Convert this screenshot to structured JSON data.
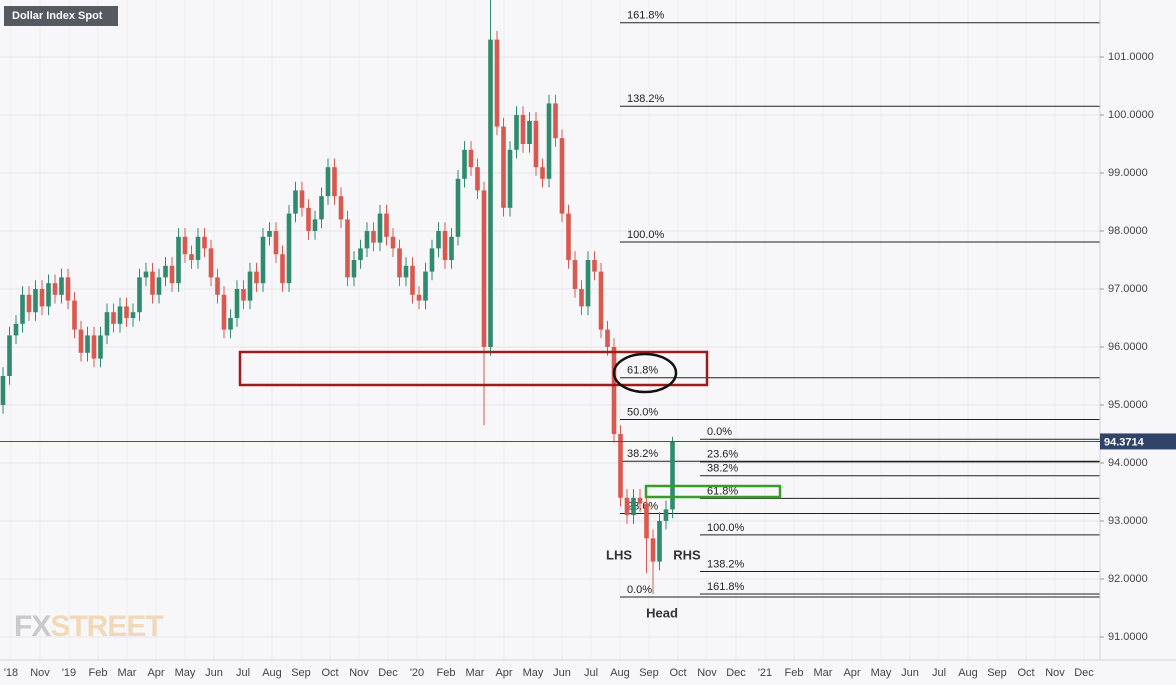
{
  "chart_data": {
    "type": "candlestick",
    "title": "Dollar Index Spot",
    "watermark": [
      "FX",
      "STREET"
    ],
    "x_labels": [
      "'18",
      "Nov",
      "'19",
      "Feb",
      "Mar",
      "Apr",
      "May",
      "Jun",
      "Jul",
      "Aug",
      "Sep",
      "Oct",
      "Nov",
      "Dec",
      "'20",
      "Feb",
      "Mar",
      "Apr",
      "May",
      "Jun",
      "Jul",
      "Aug",
      "Sep",
      "Oct",
      "Nov",
      "Dec",
      "'21",
      "Feb",
      "Mar",
      "Apr",
      "May",
      "Jun",
      "Jul",
      "Aug",
      "Sep",
      "Oct",
      "Nov",
      "Dec"
    ],
    "colors": {
      "up": "#2e8b6e",
      "down": "#d9584f"
    },
    "open": [
      95.0,
      95.5,
      96.2,
      96.4,
      96.9,
      96.6,
      97.0,
      96.7,
      97.1,
      96.9,
      97.2,
      96.8,
      96.3,
      95.9,
      96.2,
      95.8,
      96.2,
      96.6,
      96.4,
      96.7,
      96.5,
      96.6,
      97.2,
      97.3,
      96.9,
      97.2,
      97.4,
      97.1,
      97.9,
      97.6,
      97.5,
      97.9,
      97.7,
      97.2,
      96.9,
      96.3,
      96.5,
      97.0,
      96.8,
      97.3,
      97.1,
      97.9,
      98.0,
      97.6,
      97.1,
      98.3,
      98.7,
      98.4,
      98.0,
      98.2,
      98.6,
      99.1,
      98.6,
      98.2,
      97.2,
      97.5,
      97.7,
      98.0,
      97.8,
      98.3,
      97.9,
      97.7,
      97.2,
      97.4,
      96.9,
      96.8,
      97.3,
      97.7,
      98.0,
      97.5,
      97.9,
      98.9,
      99.4,
      99.1,
      98.7,
      96.0,
      101.3,
      99.8,
      98.4,
      99.4,
      100.0,
      99.5,
      99.9,
      99.1,
      98.9,
      100.2,
      99.6,
      98.3,
      97.5,
      97.0,
      96.7,
      97.5,
      97.3,
      96.3,
      96.0,
      94.5,
      93.4,
      93.1,
      93.4,
      93.3,
      92.7,
      92.3,
      93.0,
      93.2
    ],
    "high": [
      95.65,
      96.35,
      96.55,
      97.05,
      97.05,
      97.15,
      97.15,
      97.25,
      97.25,
      97.35,
      97.35,
      96.95,
      96.45,
      96.35,
      96.35,
      96.35,
      96.75,
      96.75,
      96.85,
      96.85,
      96.75,
      97.35,
      97.45,
      97.45,
      97.35,
      97.55,
      97.55,
      98.05,
      98.05,
      97.75,
      98.05,
      98.05,
      97.85,
      97.35,
      97.05,
      96.65,
      97.15,
      97.15,
      97.45,
      97.45,
      98.05,
      98.15,
      98.15,
      97.75,
      98.45,
      98.85,
      98.85,
      98.55,
      98.35,
      98.75,
      99.25,
      99.25,
      98.75,
      98.35,
      97.65,
      97.85,
      98.15,
      98.15,
      98.45,
      98.45,
      98.05,
      97.85,
      97.55,
      97.55,
      97.05,
      97.45,
      97.85,
      98.15,
      98.15,
      98.05,
      99.05,
      99.55,
      99.55,
      99.25,
      98.85,
      102.9,
      101.45,
      99.95,
      99.55,
      100.15,
      100.15,
      100.05,
      100.05,
      99.25,
      100.35,
      100.35,
      99.75,
      98.45,
      97.65,
      97.15,
      97.65,
      97.65,
      97.45,
      96.45,
      96.15,
      94.65,
      93.55,
      93.55,
      93.55,
      93.45,
      92.85,
      93.15,
      93.35,
      94.45
    ],
    "low": [
      94.85,
      95.35,
      96.05,
      96.25,
      96.45,
      96.45,
      96.55,
      96.55,
      96.75,
      96.75,
      96.65,
      96.15,
      95.75,
      95.75,
      95.65,
      95.65,
      96.05,
      96.25,
      96.25,
      96.35,
      96.35,
      96.45,
      97.05,
      96.75,
      96.75,
      97.05,
      96.95,
      96.95,
      97.45,
      97.35,
      97.35,
      97.55,
      97.05,
      96.75,
      96.15,
      96.15,
      96.35,
      96.65,
      96.65,
      96.95,
      96.95,
      97.75,
      97.45,
      96.95,
      96.95,
      98.15,
      98.25,
      97.85,
      97.85,
      98.05,
      98.45,
      98.45,
      98.05,
      97.05,
      97.05,
      97.35,
      97.55,
      97.65,
      97.65,
      97.75,
      97.55,
      97.05,
      97.05,
      96.75,
      96.65,
      96.65,
      97.15,
      97.55,
      97.35,
      97.35,
      97.75,
      98.75,
      98.95,
      98.55,
      94.65,
      95.85,
      99.65,
      98.25,
      98.25,
      99.25,
      99.35,
      99.35,
      98.95,
      98.75,
      98.75,
      99.45,
      98.15,
      97.35,
      96.85,
      96.55,
      96.55,
      97.15,
      96.15,
      95.85,
      94.35,
      93.25,
      92.95,
      92.95,
      93.15,
      92.1,
      91.74,
      92.15,
      92.85,
      93.05
    ],
    "close": [
      95.5,
      96.2,
      96.4,
      96.9,
      96.6,
      97.0,
      96.7,
      97.1,
      96.9,
      97.2,
      96.8,
      96.3,
      95.9,
      96.2,
      95.8,
      96.2,
      96.6,
      96.4,
      96.7,
      96.5,
      96.6,
      97.2,
      97.3,
      96.9,
      97.2,
      97.4,
      97.1,
      97.9,
      97.6,
      97.5,
      97.9,
      97.7,
      97.2,
      96.9,
      96.3,
      96.5,
      97.0,
      96.8,
      97.3,
      97.1,
      97.9,
      98.0,
      97.6,
      97.1,
      98.3,
      98.7,
      98.4,
      98.0,
      98.2,
      98.6,
      99.1,
      98.6,
      98.2,
      97.2,
      97.5,
      97.7,
      98.0,
      97.8,
      98.3,
      97.9,
      97.7,
      97.2,
      97.4,
      96.9,
      96.8,
      97.3,
      97.7,
      98.0,
      97.5,
      97.9,
      98.9,
      99.4,
      99.1,
      98.7,
      96.0,
      101.3,
      99.8,
      98.4,
      99.4,
      100.0,
      99.5,
      99.9,
      99.1,
      98.9,
      100.2,
      99.6,
      98.3,
      97.5,
      97.0,
      96.7,
      97.5,
      97.3,
      96.3,
      96.0,
      94.5,
      93.4,
      93.1,
      93.4,
      93.3,
      92.7,
      92.3,
      93.0,
      93.2,
      94.37
    ],
    "ylim": [
      90.603,
      101.983
    ],
    "yticks": [
      {
        "value": 91,
        "label": "91.0000"
      },
      {
        "value": 92,
        "label": "92.0000"
      },
      {
        "value": 93,
        "label": "93.0000"
      },
      {
        "value": 94,
        "label": "94.0000"
      },
      {
        "value": 95,
        "label": "95.0000"
      },
      {
        "value": 96,
        "label": "96.0000"
      },
      {
        "value": 97,
        "label": "97.0000"
      },
      {
        "value": 98,
        "label": "98.0000"
      },
      {
        "value": 99,
        "label": "99.0000"
      },
      {
        "value": 100,
        "label": "100.0000"
      },
      {
        "value": 101,
        "label": "101.0000"
      }
    ],
    "grid": true,
    "last_price": 94.3714,
    "fibonacci": [
      {
        "levels": [
          {
            "value": 91.69,
            "label": "0.0%"
          },
          {
            "value": 93.13,
            "label": "23.6%"
          },
          {
            "value": 94.03,
            "label": "38.2%"
          },
          {
            "value": 94.75,
            "label": "50.0%"
          },
          {
            "value": 95.47,
            "label": "61.8%"
          },
          {
            "value": 97.81,
            "label": "100.0%"
          },
          {
            "value": 100.15,
            "label": "138.2%"
          },
          {
            "value": 101.59,
            "label": "161.8%"
          }
        ]
      },
      {
        "levels": [
          {
            "value": 94.41,
            "label": "0.0%"
          },
          {
            "value": 94.02,
            "label": "23.6%"
          },
          {
            "value": 93.78,
            "label": "38.2%"
          },
          {
            "value": 93.39,
            "label": "61.8%"
          },
          {
            "value": 92.76,
            "label": "100.0%"
          },
          {
            "value": 92.13,
            "label": "138.2%"
          },
          {
            "value": 91.74,
            "label": "161.8%"
          }
        ]
      }
    ],
    "annotations": [
      "LHS",
      "RHS",
      "Head"
    ]
  }
}
